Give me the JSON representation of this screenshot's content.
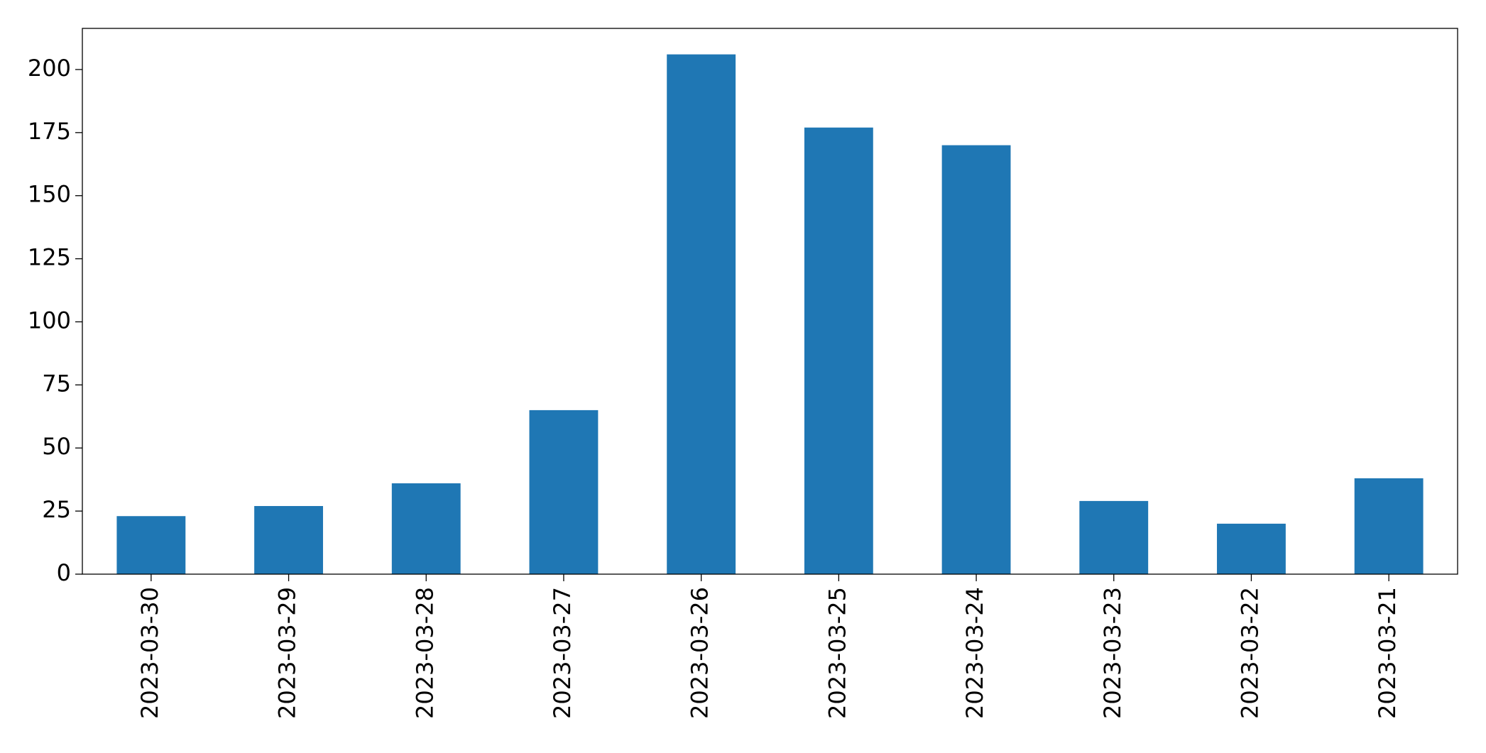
{
  "chart_data": {
    "type": "bar",
    "categories": [
      "2023-03-30",
      "2023-03-29",
      "2023-03-28",
      "2023-03-27",
      "2023-03-26",
      "2023-03-25",
      "2023-03-24",
      "2023-03-23",
      "2023-03-22",
      "2023-03-21"
    ],
    "values": [
      23,
      27,
      36,
      65,
      206,
      177,
      170,
      29,
      20,
      38
    ],
    "color": "#1f77b4",
    "ylim": [
      0,
      216.3
    ],
    "yticks": [
      0,
      25,
      50,
      75,
      100,
      125,
      150,
      175,
      200
    ],
    "grid": false
  }
}
